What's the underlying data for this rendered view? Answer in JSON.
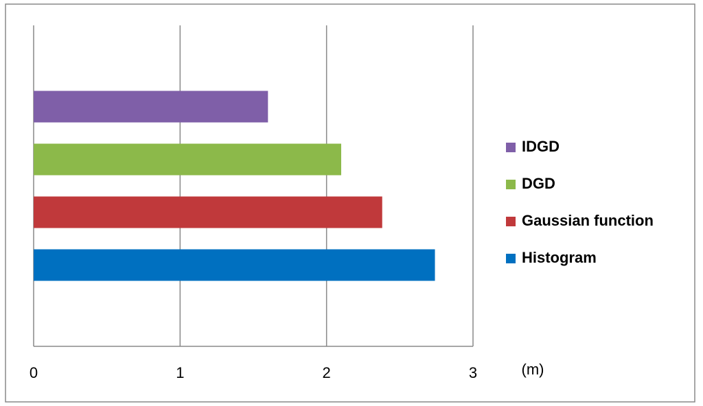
{
  "chart_data": {
    "type": "bar",
    "orientation": "horizontal",
    "xlabel": "(m)",
    "series": [
      {
        "name": "Histogram",
        "color": "#0070c0",
        "values": [
          2.74
        ]
      },
      {
        "name": "Gaussian function",
        "color": "#c0393b",
        "values": [
          2.38
        ]
      },
      {
        "name": "DGD",
        "color": "#8cb94a",
        "values": [
          2.1
        ]
      },
      {
        "name": "IDGD",
        "color": "#7f5fa8",
        "values": [
          1.6
        ]
      }
    ],
    "xlim": [
      0,
      3
    ],
    "xticks": [
      0,
      1,
      2,
      3
    ],
    "grid": true,
    "legend": "right"
  }
}
